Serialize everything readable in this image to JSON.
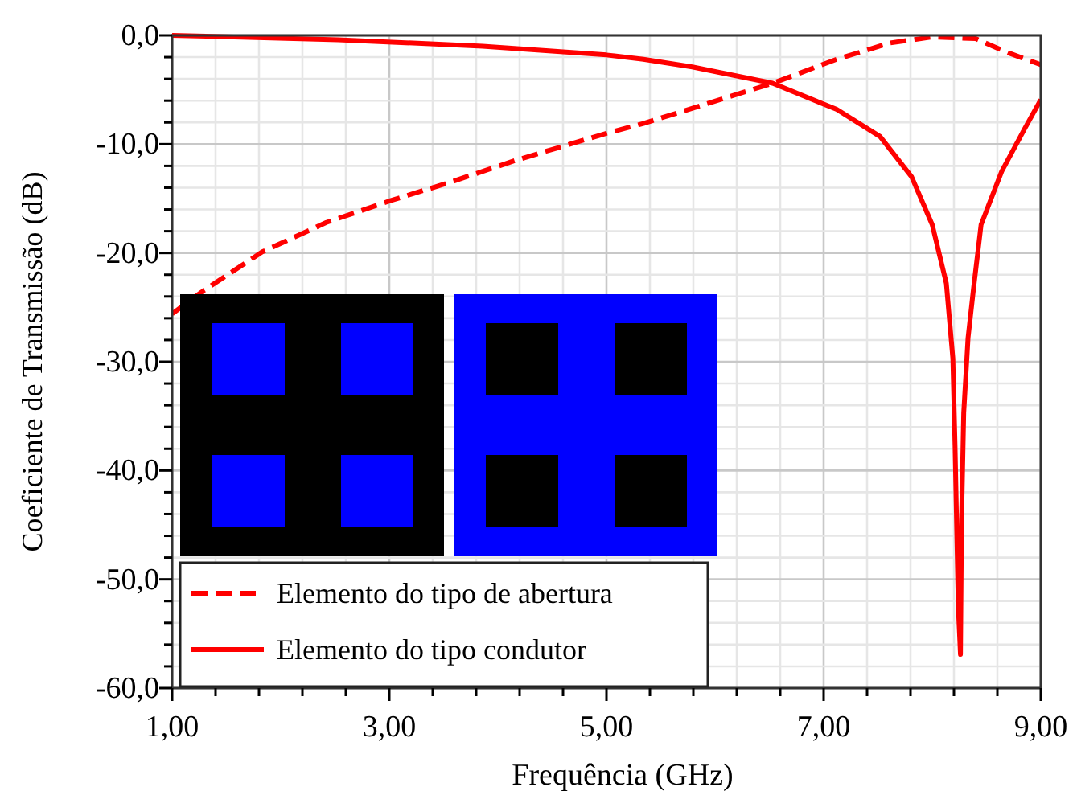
{
  "chart_data": {
    "type": "line",
    "xlabel": "Frequência (GHz)",
    "ylabel": "Coeficiente de Transmissão (dB)",
    "xlim": [
      1,
      9
    ],
    "ylim": [
      -60,
      0
    ],
    "xticks": [
      {
        "value": 1,
        "label": "1,00"
      },
      {
        "value": 1.4,
        "label": null
      },
      {
        "value": 1.8,
        "label": null
      },
      {
        "value": 2.2,
        "label": null
      },
      {
        "value": 2.6,
        "label": null
      },
      {
        "value": 3,
        "label": "3,00"
      },
      {
        "value": 3.4,
        "label": null
      },
      {
        "value": 3.8,
        "label": null
      },
      {
        "value": 4.2,
        "label": null
      },
      {
        "value": 4.6,
        "label": null
      },
      {
        "value": 5,
        "label": "5,00"
      },
      {
        "value": 5.4,
        "label": null
      },
      {
        "value": 5.8,
        "label": null
      },
      {
        "value": 6.2,
        "label": null
      },
      {
        "value": 6.6,
        "label": null
      },
      {
        "value": 7,
        "label": "7,00"
      },
      {
        "value": 7.4,
        "label": null
      },
      {
        "value": 7.8,
        "label": null
      },
      {
        "value": 8.2,
        "label": null
      },
      {
        "value": 8.6,
        "label": null
      },
      {
        "value": 9,
        "label": "9,00"
      }
    ],
    "yticks": [
      {
        "value": -60,
        "label": "-60,0"
      },
      {
        "value": -58,
        "label": null
      },
      {
        "value": -56,
        "label": null
      },
      {
        "value": -54,
        "label": null
      },
      {
        "value": -52,
        "label": null
      },
      {
        "value": -50,
        "label": "-50,0"
      },
      {
        "value": -48,
        "label": null
      },
      {
        "value": -46,
        "label": null
      },
      {
        "value": -44,
        "label": null
      },
      {
        "value": -42,
        "label": null
      },
      {
        "value": -40,
        "label": "-40,0"
      },
      {
        "value": -38,
        "label": null
      },
      {
        "value": -36,
        "label": null
      },
      {
        "value": -34,
        "label": null
      },
      {
        "value": -32,
        "label": null
      },
      {
        "value": -30,
        "label": "-30,0"
      },
      {
        "value": -28,
        "label": null
      },
      {
        "value": -26,
        "label": null
      },
      {
        "value": -24,
        "label": null
      },
      {
        "value": -22,
        "label": null
      },
      {
        "value": -20,
        "label": "-20,0"
      },
      {
        "value": -18,
        "label": null
      },
      {
        "value": -16,
        "label": null
      },
      {
        "value": -14,
        "label": null
      },
      {
        "value": -12,
        "label": null
      },
      {
        "value": -10,
        "label": "-10,0"
      },
      {
        "value": -8,
        "label": null
      },
      {
        "value": -6,
        "label": null
      },
      {
        "value": -4,
        "label": null
      },
      {
        "value": -2,
        "label": null
      },
      {
        "value": 0,
        "label": "0,0"
      }
    ],
    "grid": true,
    "legend": "bottom left",
    "marker": "none",
    "series": [
      {
        "name": "Elemento do tipo de abertura",
        "color": "#ff0000",
        "line_style": "dashed",
        "x": [
          1,
          1.27,
          1.83,
          2.42,
          3.01,
          3.56,
          4.16,
          5.0,
          5.34,
          6.53,
          7.12,
          7.61,
          8.0,
          8.4,
          8.7,
          9
        ],
        "values": [
          -25.6,
          -23.6,
          -19.9,
          -17.2,
          -15.2,
          -13.5,
          -11.5,
          -9.0,
          -8.1,
          -4.4,
          -2.2,
          -0.7,
          -0.15,
          -0.3,
          -1.6,
          -2.7
        ]
      },
      {
        "name": "Elemento do tipo condutor",
        "color": "#ff0000",
        "line_style": "solid",
        "x": [
          1,
          2.53,
          3.86,
          5.0,
          5.34,
          5.79,
          6.53,
          7.12,
          7.52,
          7.81,
          8.0,
          8.13,
          8.19,
          8.21,
          8.24,
          8.26,
          8.27,
          8.29,
          8.33,
          8.38,
          8.45,
          8.64,
          8.85,
          9
        ],
        "values": [
          0,
          -0.4,
          -1.0,
          -1.8,
          -2.2,
          -2.9,
          -4.4,
          -6.8,
          -9.3,
          -13.0,
          -17.4,
          -22.8,
          -29.7,
          -37.7,
          -52.5,
          -56.9,
          -44.5,
          -34.7,
          -27.8,
          -23.3,
          -17.4,
          -12.5,
          -8.6,
          -5.9
        ]
      }
    ]
  }
}
